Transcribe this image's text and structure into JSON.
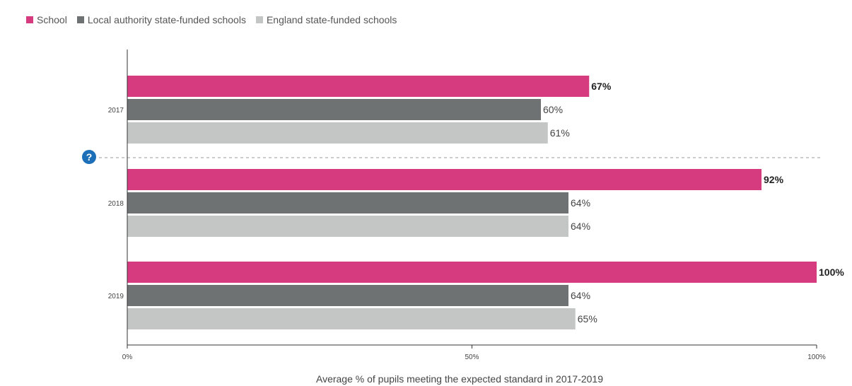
{
  "legend": [
    {
      "label": "School",
      "color": "#d63a7f"
    },
    {
      "label": "Local authority state-funded schools",
      "color": "#6f7273"
    },
    {
      "label": "England state-funded schools",
      "color": "#c4c6c6"
    }
  ],
  "help_icon": "question-mark-icon",
  "chart_data": {
    "type": "bar",
    "orientation": "horizontal",
    "categories": [
      "2017",
      "2018",
      "2019"
    ],
    "series": [
      {
        "name": "School",
        "values": [
          67,
          92,
          100
        ],
        "labels": [
          "67%",
          "92%",
          "100%"
        ],
        "color": "#d63a7f",
        "bold_labels": true
      },
      {
        "name": "Local authority state-funded schools",
        "values": [
          60,
          64,
          64
        ],
        "labels": [
          "60%",
          "64%",
          "64%"
        ],
        "color": "#6f7273",
        "bold_labels": false
      },
      {
        "name": "England state-funded schools",
        "values": [
          61,
          64,
          65
        ],
        "labels": [
          "61%",
          "64%",
          "65%"
        ],
        "color": "#c4c6c6",
        "bold_labels": false
      }
    ],
    "xlim": [
      0,
      100
    ],
    "xticks": [
      0,
      50,
      100
    ],
    "xtick_labels": [
      "0%",
      "50%",
      "100%"
    ],
    "xlabel": "Average % of pupils meeting the expected standard in 2017-2019",
    "legend_position": "top-left",
    "grid": false
  }
}
